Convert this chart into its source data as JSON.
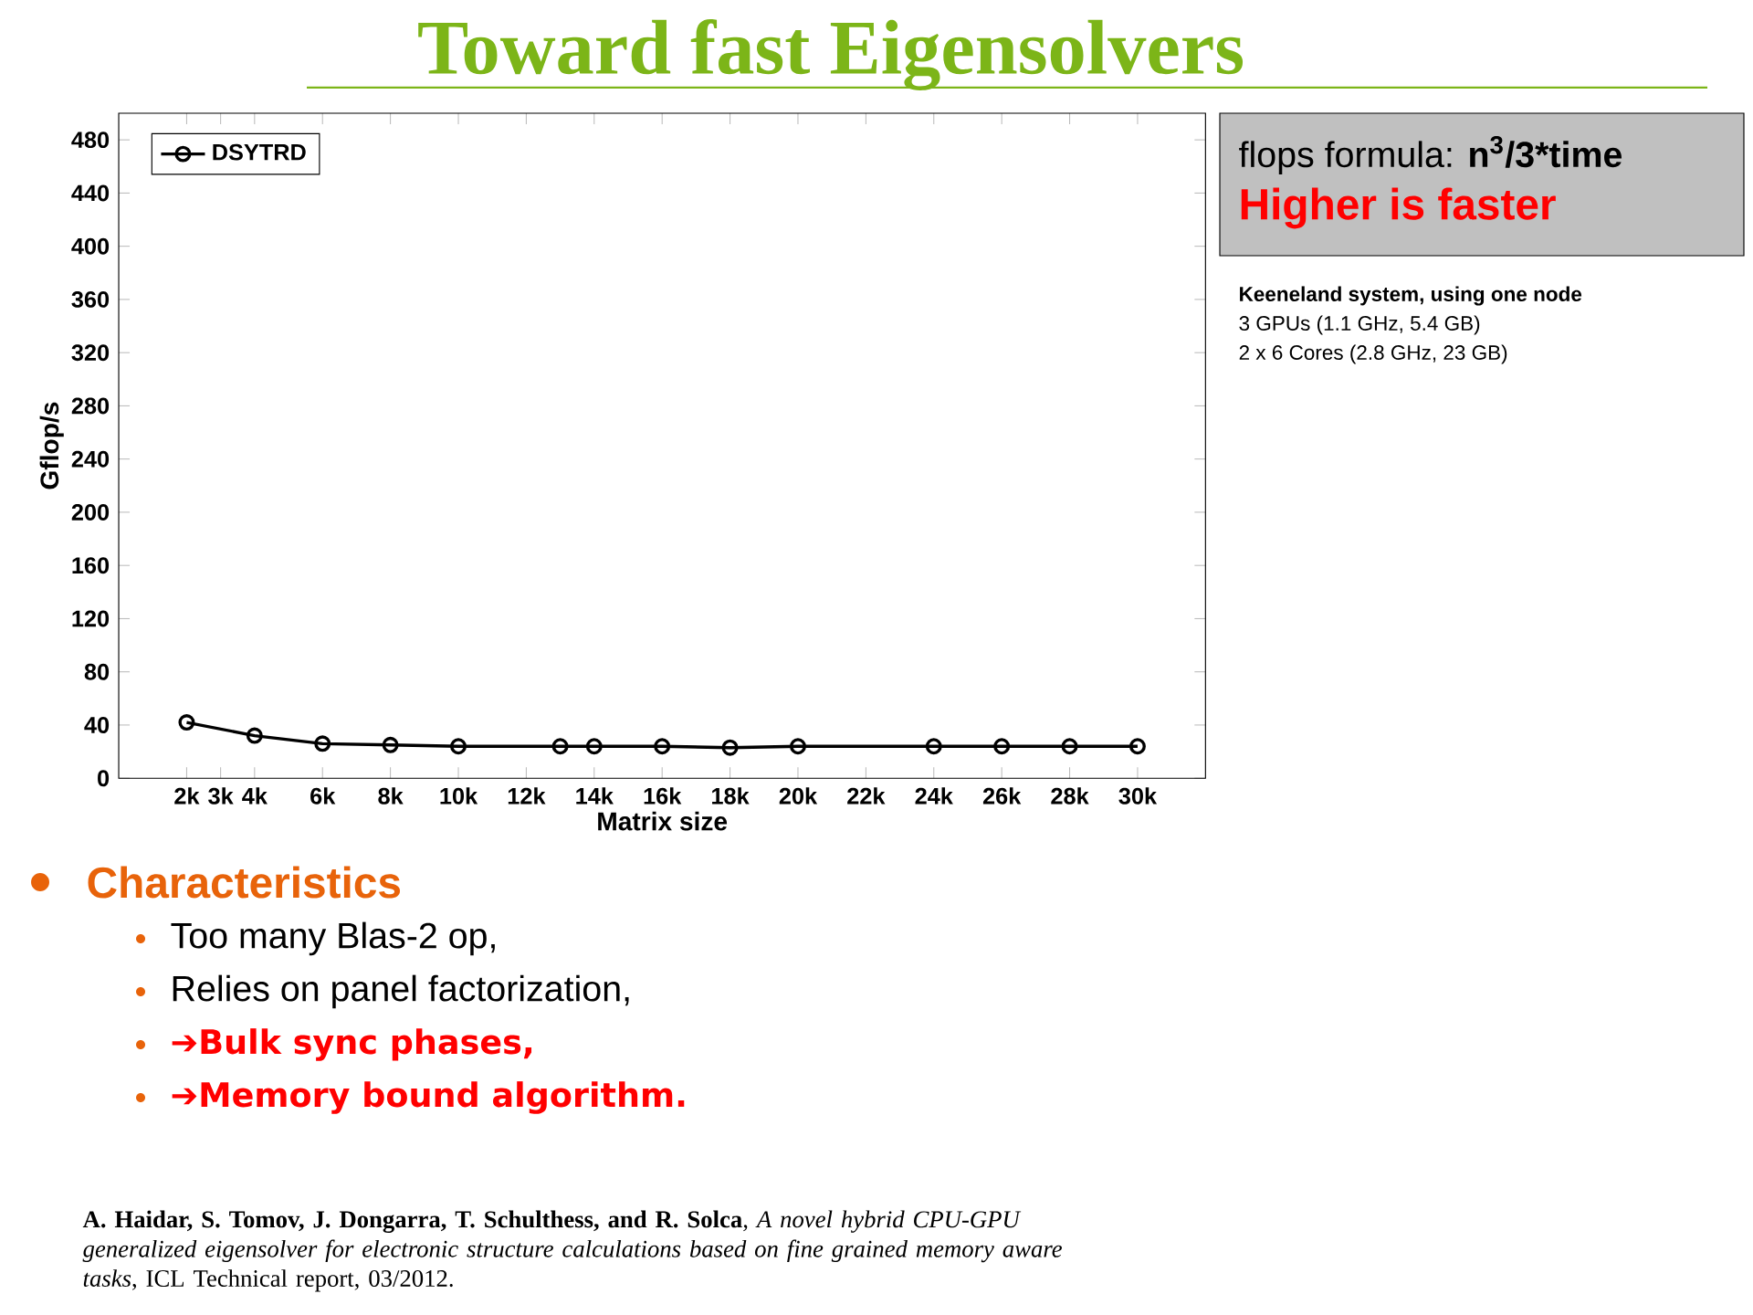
{
  "chart_data": {
    "type": "line",
    "title": "Toward fast Eigensolvers",
    "xlabel": "Matrix size",
    "ylabel": "Gflop/s",
    "x": [
      2000,
      4000,
      6000,
      8000,
      10000,
      13000,
      14000,
      16000,
      18000,
      20000,
      24000,
      26000,
      28000,
      30000
    ],
    "series": [
      {
        "name": "DSYTRD",
        "color": "#000000",
        "values": [
          42,
          32,
          26,
          25,
          24,
          24,
          24,
          24,
          23,
          24,
          24,
          24,
          24,
          24
        ]
      }
    ],
    "xlim": [
      0,
      32000
    ],
    "ylim": [
      0,
      500
    ],
    "xticks": [
      {
        "value": 2000,
        "label": "2k"
      },
      {
        "value": 3000,
        "label": "3k"
      },
      {
        "value": 4000,
        "label": "4k"
      },
      {
        "value": 6000,
        "label": "6k"
      },
      {
        "value": 8000,
        "label": "8k"
      },
      {
        "value": 10000,
        "label": "10k"
      },
      {
        "value": 12000,
        "label": "12k"
      },
      {
        "value": 14000,
        "label": "14k"
      },
      {
        "value": 16000,
        "label": "16k"
      },
      {
        "value": 18000,
        "label": "18k"
      },
      {
        "value": 20000,
        "label": "20k"
      },
      {
        "value": 22000,
        "label": "22k"
      },
      {
        "value": 24000,
        "label": "24k"
      },
      {
        "value": 26000,
        "label": "26k"
      },
      {
        "value": 28000,
        "label": "28k"
      },
      {
        "value": 30000,
        "label": "30k"
      }
    ],
    "yticks": [
      0,
      40,
      80,
      120,
      160,
      200,
      240,
      280,
      320,
      360,
      400,
      440,
      480
    ],
    "legend": "top left",
    "marker": "circle",
    "line_style": "solid",
    "annotations": [
      "flops formula: **n$^{3}$/3*time**",
      "Higher is faster",
      "Keeneland system, using one node",
      "3 GPUs (1.1 GHz, 5.4 GB)",
      "2 x 6 Cores (2.8 GHz, 23 GB)",
      "Characteristics",
      "Too many Blas-2 op,",
      "Relies on panel factorization,",
      "➔Bulk sync phases,",
      "➔Memory bound algorithm.",
      "**A. Haidar, S. Tomov, J. Dongarra, T. Schulthess, and R. Solca**, *A novel hybrid CPU-GPU generalized eigensolver for electronic structure calculations based on fine grained memory aware tasks*, ICL Technical report, 03/2012."
    ]
  }
}
